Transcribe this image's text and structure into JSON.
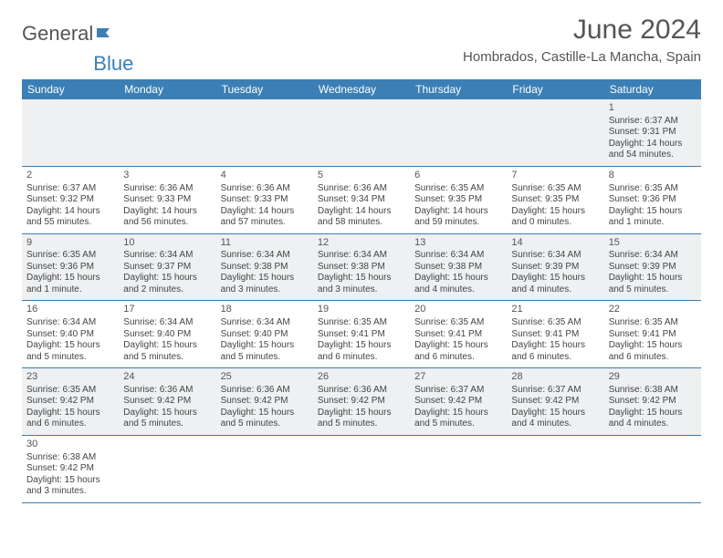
{
  "logo": {
    "text1": "General",
    "text2": "Blue"
  },
  "title": "June 2024",
  "location": "Hombrados, Castille-La Mancha, Spain",
  "colors": {
    "header_bg": "#3b7fb5",
    "header_fg": "#ffffff",
    "row_alt_bg": "#eef0f2",
    "border": "#3b7fb5"
  },
  "weekdays": [
    "Sunday",
    "Monday",
    "Tuesday",
    "Wednesday",
    "Thursday",
    "Friday",
    "Saturday"
  ],
  "weeks": [
    [
      null,
      null,
      null,
      null,
      null,
      null,
      {
        "n": "1",
        "sr": "Sunrise: 6:37 AM",
        "ss": "Sunset: 9:31 PM",
        "dl": "Daylight: 14 hours and 54 minutes."
      }
    ],
    [
      {
        "n": "2",
        "sr": "Sunrise: 6:37 AM",
        "ss": "Sunset: 9:32 PM",
        "dl": "Daylight: 14 hours and 55 minutes."
      },
      {
        "n": "3",
        "sr": "Sunrise: 6:36 AM",
        "ss": "Sunset: 9:33 PM",
        "dl": "Daylight: 14 hours and 56 minutes."
      },
      {
        "n": "4",
        "sr": "Sunrise: 6:36 AM",
        "ss": "Sunset: 9:33 PM",
        "dl": "Daylight: 14 hours and 57 minutes."
      },
      {
        "n": "5",
        "sr": "Sunrise: 6:36 AM",
        "ss": "Sunset: 9:34 PM",
        "dl": "Daylight: 14 hours and 58 minutes."
      },
      {
        "n": "6",
        "sr": "Sunrise: 6:35 AM",
        "ss": "Sunset: 9:35 PM",
        "dl": "Daylight: 14 hours and 59 minutes."
      },
      {
        "n": "7",
        "sr": "Sunrise: 6:35 AM",
        "ss": "Sunset: 9:35 PM",
        "dl": "Daylight: 15 hours and 0 minutes."
      },
      {
        "n": "8",
        "sr": "Sunrise: 6:35 AM",
        "ss": "Sunset: 9:36 PM",
        "dl": "Daylight: 15 hours and 1 minute."
      }
    ],
    [
      {
        "n": "9",
        "sr": "Sunrise: 6:35 AM",
        "ss": "Sunset: 9:36 PM",
        "dl": "Daylight: 15 hours and 1 minute."
      },
      {
        "n": "10",
        "sr": "Sunrise: 6:34 AM",
        "ss": "Sunset: 9:37 PM",
        "dl": "Daylight: 15 hours and 2 minutes."
      },
      {
        "n": "11",
        "sr": "Sunrise: 6:34 AM",
        "ss": "Sunset: 9:38 PM",
        "dl": "Daylight: 15 hours and 3 minutes."
      },
      {
        "n": "12",
        "sr": "Sunrise: 6:34 AM",
        "ss": "Sunset: 9:38 PM",
        "dl": "Daylight: 15 hours and 3 minutes."
      },
      {
        "n": "13",
        "sr": "Sunrise: 6:34 AM",
        "ss": "Sunset: 9:38 PM",
        "dl": "Daylight: 15 hours and 4 minutes."
      },
      {
        "n": "14",
        "sr": "Sunrise: 6:34 AM",
        "ss": "Sunset: 9:39 PM",
        "dl": "Daylight: 15 hours and 4 minutes."
      },
      {
        "n": "15",
        "sr": "Sunrise: 6:34 AM",
        "ss": "Sunset: 9:39 PM",
        "dl": "Daylight: 15 hours and 5 minutes."
      }
    ],
    [
      {
        "n": "16",
        "sr": "Sunrise: 6:34 AM",
        "ss": "Sunset: 9:40 PM",
        "dl": "Daylight: 15 hours and 5 minutes."
      },
      {
        "n": "17",
        "sr": "Sunrise: 6:34 AM",
        "ss": "Sunset: 9:40 PM",
        "dl": "Daylight: 15 hours and 5 minutes."
      },
      {
        "n": "18",
        "sr": "Sunrise: 6:34 AM",
        "ss": "Sunset: 9:40 PM",
        "dl": "Daylight: 15 hours and 5 minutes."
      },
      {
        "n": "19",
        "sr": "Sunrise: 6:35 AM",
        "ss": "Sunset: 9:41 PM",
        "dl": "Daylight: 15 hours and 6 minutes."
      },
      {
        "n": "20",
        "sr": "Sunrise: 6:35 AM",
        "ss": "Sunset: 9:41 PM",
        "dl": "Daylight: 15 hours and 6 minutes."
      },
      {
        "n": "21",
        "sr": "Sunrise: 6:35 AM",
        "ss": "Sunset: 9:41 PM",
        "dl": "Daylight: 15 hours and 6 minutes."
      },
      {
        "n": "22",
        "sr": "Sunrise: 6:35 AM",
        "ss": "Sunset: 9:41 PM",
        "dl": "Daylight: 15 hours and 6 minutes."
      }
    ],
    [
      {
        "n": "23",
        "sr": "Sunrise: 6:35 AM",
        "ss": "Sunset: 9:42 PM",
        "dl": "Daylight: 15 hours and 6 minutes."
      },
      {
        "n": "24",
        "sr": "Sunrise: 6:36 AM",
        "ss": "Sunset: 9:42 PM",
        "dl": "Daylight: 15 hours and 5 minutes."
      },
      {
        "n": "25",
        "sr": "Sunrise: 6:36 AM",
        "ss": "Sunset: 9:42 PM",
        "dl": "Daylight: 15 hours and 5 minutes."
      },
      {
        "n": "26",
        "sr": "Sunrise: 6:36 AM",
        "ss": "Sunset: 9:42 PM",
        "dl": "Daylight: 15 hours and 5 minutes."
      },
      {
        "n": "27",
        "sr": "Sunrise: 6:37 AM",
        "ss": "Sunset: 9:42 PM",
        "dl": "Daylight: 15 hours and 5 minutes."
      },
      {
        "n": "28",
        "sr": "Sunrise: 6:37 AM",
        "ss": "Sunset: 9:42 PM",
        "dl": "Daylight: 15 hours and 4 minutes."
      },
      {
        "n": "29",
        "sr": "Sunrise: 6:38 AM",
        "ss": "Sunset: 9:42 PM",
        "dl": "Daylight: 15 hours and 4 minutes."
      }
    ],
    [
      {
        "n": "30",
        "sr": "Sunrise: 6:38 AM",
        "ss": "Sunset: 9:42 PM",
        "dl": "Daylight: 15 hours and 3 minutes."
      },
      null,
      null,
      null,
      null,
      null,
      null
    ]
  ]
}
